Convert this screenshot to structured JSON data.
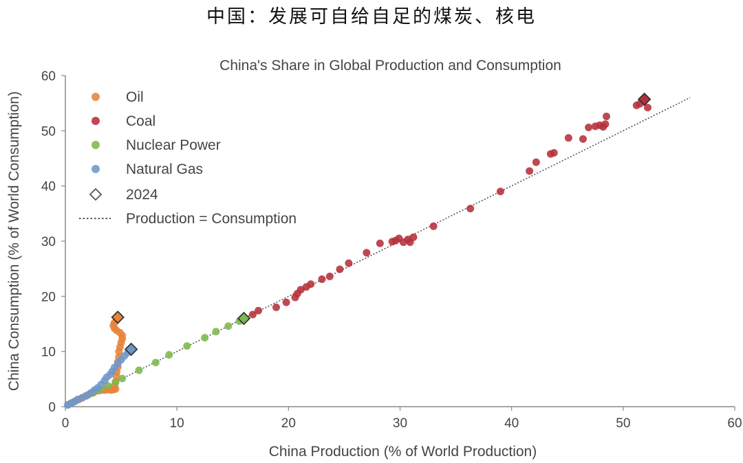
{
  "header": {
    "title": "中国：发展可自给自足的煤炭、核电"
  },
  "chart_data": {
    "type": "scatter",
    "title": "China's Share in Global Production and Consumption",
    "xlabel": "China Production (% of World Production)",
    "ylabel": "China Consumption (% of World Consumption)",
    "xlim": [
      0,
      60
    ],
    "ylim": [
      0,
      60
    ],
    "xticks": [
      "0",
      "10",
      "20",
      "30",
      "40",
      "50",
      "60"
    ],
    "yticks": [
      "0",
      "10",
      "20",
      "30",
      "40",
      "50",
      "60"
    ],
    "grid": false,
    "legend_position": "top-left",
    "reference_line": {
      "name": "Production = Consumption",
      "x": [
        0,
        56
      ],
      "y": [
        0,
        56
      ],
      "style": "dotted",
      "color": "#555555"
    },
    "marker_2024_label": "2024",
    "series": [
      {
        "name": "Oil",
        "color": "#E8833A",
        "points": [
          [
            0.3,
            0.4
          ],
          [
            0.6,
            0.7
          ],
          [
            0.9,
            1.0
          ],
          [
            1.2,
            1.3
          ],
          [
            1.5,
            1.6
          ],
          [
            1.8,
            1.9
          ],
          [
            2.1,
            2.2
          ],
          [
            2.4,
            2.5
          ],
          [
            2.7,
            2.8
          ],
          [
            3.0,
            2.9
          ],
          [
            3.3,
            3.0
          ],
          [
            3.6,
            3.0
          ],
          [
            3.9,
            3.1
          ],
          [
            4.1,
            3.0
          ],
          [
            4.3,
            3.1
          ],
          [
            4.5,
            3.2
          ],
          [
            4.4,
            3.8
          ],
          [
            4.5,
            4.5
          ],
          [
            4.6,
            5.4
          ],
          [
            4.6,
            6.3
          ],
          [
            4.7,
            7.2
          ],
          [
            4.7,
            8.1
          ],
          [
            4.8,
            9.0
          ],
          [
            4.8,
            10.0
          ],
          [
            4.9,
            10.8
          ],
          [
            5.0,
            11.6
          ],
          [
            5.1,
            12.3
          ],
          [
            5.1,
            12.9
          ],
          [
            4.9,
            13.4
          ],
          [
            4.6,
            13.8
          ],
          [
            4.4,
            14.2
          ],
          [
            4.3,
            14.7
          ],
          [
            4.4,
            15.2
          ],
          [
            4.6,
            15.7
          ]
        ],
        "point_2024": [
          4.7,
          16.2
        ]
      },
      {
        "name": "Coal",
        "color": "#B5303A",
        "points": [
          [
            16.8,
            16.7
          ],
          [
            17.3,
            17.4
          ],
          [
            18.9,
            18.0
          ],
          [
            19.8,
            18.9
          ],
          [
            20.6,
            19.8
          ],
          [
            20.8,
            20.5
          ],
          [
            21.1,
            21.2
          ],
          [
            21.6,
            21.7
          ],
          [
            22.0,
            22.2
          ],
          [
            23.0,
            23.1
          ],
          [
            23.7,
            23.6
          ],
          [
            24.6,
            24.9
          ],
          [
            25.4,
            26.0
          ],
          [
            27.0,
            27.9
          ],
          [
            28.2,
            29.6
          ],
          [
            29.3,
            29.9
          ],
          [
            29.6,
            30.1
          ],
          [
            29.9,
            30.5
          ],
          [
            30.3,
            29.8
          ],
          [
            30.7,
            30.3
          ],
          [
            30.9,
            29.8
          ],
          [
            31.2,
            30.7
          ],
          [
            33.0,
            32.7
          ],
          [
            36.3,
            35.9
          ],
          [
            39.0,
            39.0
          ],
          [
            41.6,
            42.7
          ],
          [
            42.2,
            44.3
          ],
          [
            43.5,
            45.8
          ],
          [
            43.8,
            46.0
          ],
          [
            45.1,
            48.7
          ],
          [
            46.4,
            48.5
          ],
          [
            46.9,
            50.6
          ],
          [
            47.5,
            50.8
          ],
          [
            47.9,
            51.0
          ],
          [
            48.2,
            50.7
          ],
          [
            48.4,
            51.2
          ],
          [
            48.5,
            52.6
          ],
          [
            51.2,
            54.6
          ],
          [
            51.5,
            54.9
          ],
          [
            52.2,
            54.2
          ]
        ],
        "point_2024": [
          51.9,
          55.7
        ]
      },
      {
        "name": "Nuclear Power",
        "color": "#7DB84C",
        "points": [
          [
            2.5,
            2.5
          ],
          [
            3.1,
            3.1
          ],
          [
            3.8,
            3.8
          ],
          [
            4.5,
            4.4
          ],
          [
            5.1,
            5.1
          ],
          [
            6.6,
            6.6
          ],
          [
            8.1,
            8.0
          ],
          [
            9.3,
            9.4
          ],
          [
            10.9,
            11.0
          ],
          [
            12.5,
            12.5
          ],
          [
            13.5,
            13.6
          ],
          [
            14.6,
            14.6
          ],
          [
            15.6,
            15.5
          ]
        ],
        "point_2024": [
          16.0,
          16.0
        ]
      },
      {
        "name": "Natural Gas",
        "color": "#6E97C9",
        "points": [
          [
            0.2,
            0.3
          ],
          [
            0.5,
            0.6
          ],
          [
            0.8,
            0.9
          ],
          [
            1.1,
            1.3
          ],
          [
            1.5,
            1.6
          ],
          [
            1.9,
            2.0
          ],
          [
            2.3,
            2.5
          ],
          [
            2.6,
            3.0
          ],
          [
            2.9,
            3.4
          ],
          [
            3.2,
            4.0
          ],
          [
            3.5,
            4.7
          ],
          [
            3.7,
            5.3
          ],
          [
            4.0,
            5.8
          ],
          [
            4.2,
            6.4
          ],
          [
            4.4,
            7.1
          ],
          [
            4.7,
            7.8
          ],
          [
            5.0,
            8.5
          ],
          [
            5.3,
            9.2
          ],
          [
            5.6,
            9.8
          ]
        ],
        "point_2024": [
          5.9,
          10.4
        ]
      }
    ]
  }
}
